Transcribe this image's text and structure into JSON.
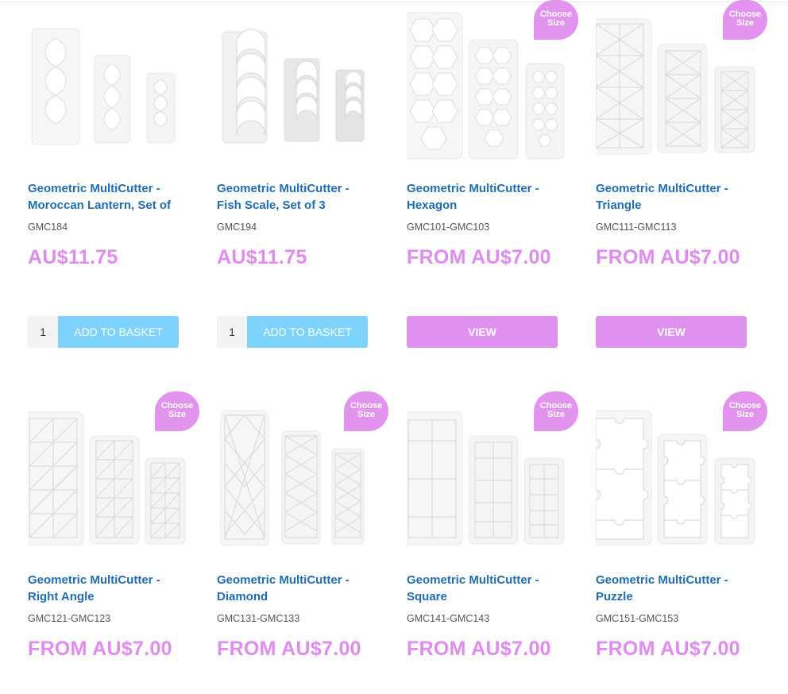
{
  "colors": {
    "title": "#1f6db5",
    "price": "#e08bf0",
    "add_button": "#7dd3fb",
    "view_button": "#df91ef",
    "badge": "#e193ee"
  },
  "products": [
    {
      "title_line1": "Geometric MultiCutter -",
      "title_line2": "Moroccan Lantern, Set of",
      "sku": "GMC184",
      "price": "AU$11.75",
      "badge": "",
      "qty": "1",
      "button": "ADD TO BASKET",
      "shape": "lantern-icon"
    },
    {
      "title_line1": "Geometric MultiCutter -",
      "title_line2": "Fish Scale, Set of 3",
      "sku": "GMC194",
      "price": "AU$11.75",
      "badge": "",
      "qty": "1",
      "button": "ADD TO BASKET",
      "shape": "fish-scale-icon"
    },
    {
      "title_line1": "Geometric MultiCutter -",
      "title_line2": "Hexagon",
      "sku": "GMC101-GMC103",
      "price": "FROM AU$7.00",
      "badge_line1": "Choose",
      "badge_line2": "Size",
      "button": "VIEW",
      "shape": "hexagon-icon"
    },
    {
      "title_line1": "Geometric MultiCutter -",
      "title_line2": "Triangle",
      "sku": "GMC111-GMC113",
      "price": "FROM AU$7.00",
      "badge_line1": "Choose",
      "badge_line2": "Size",
      "button": "VIEW",
      "shape": "triangle-icon"
    },
    {
      "title_line1": "Geometric MultiCutter -",
      "title_line2": "Right Angle",
      "sku": "GMC121-GMC123",
      "price": "FROM AU$7.00",
      "badge_line1": "Choose",
      "badge_line2": "Size",
      "shape": "right-angle-icon"
    },
    {
      "title_line1": "Geometric MultiCutter -",
      "title_line2": "Diamond",
      "sku": "GMC131-GMC133",
      "price": "FROM AU$7.00",
      "badge_line1": "Choose",
      "badge_line2": "Size",
      "shape": "diamond-icon"
    },
    {
      "title_line1": "Geometric MultiCutter -",
      "title_line2": "Square",
      "sku": "GMC141-GMC143",
      "price": "FROM AU$7.00",
      "badge_line1": "Choose",
      "badge_line2": "Size",
      "shape": "square-icon"
    },
    {
      "title_line1": "Geometric MultiCutter -",
      "title_line2": "Puzzle",
      "sku": "GMC151-GMC153",
      "price": "FROM AU$7.00",
      "badge_line1": "Choose",
      "badge_line2": "Size",
      "shape": "puzzle-icon"
    }
  ]
}
